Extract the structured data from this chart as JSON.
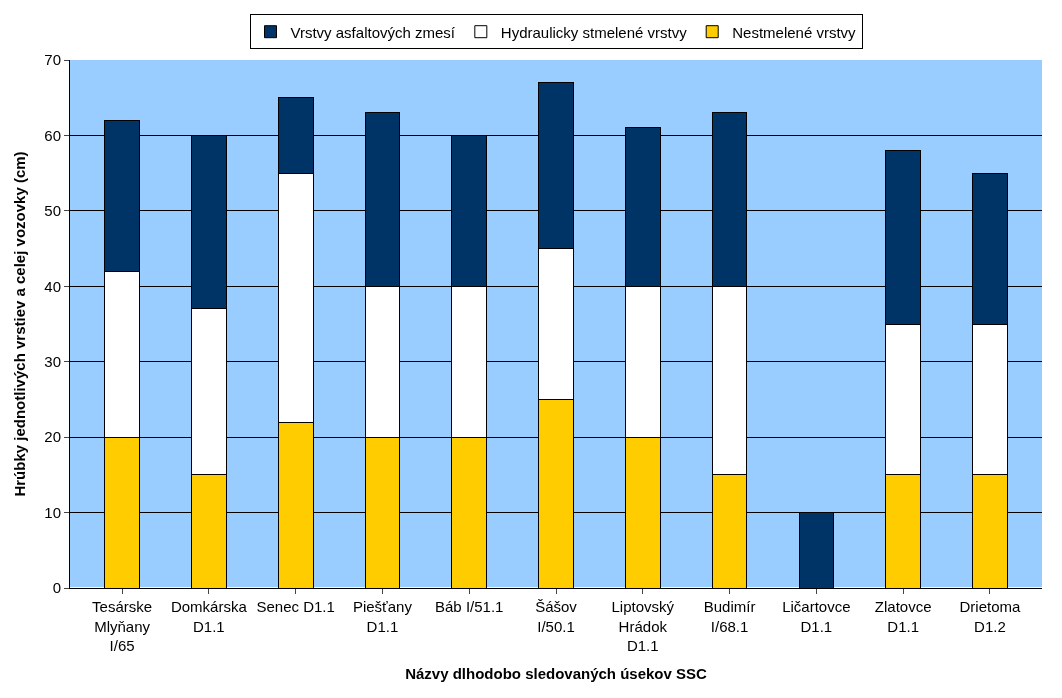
{
  "chart_data": {
    "type": "bar",
    "stacked": true,
    "xlabel": "Názvy dlhodobo sledovaných úsekov SSC",
    "ylabel": "Hrúbky jednotlivých vrstiev a celej vozovky (cm)",
    "categories": [
      "Tesárske Mlyňany I/65",
      "Domkárska D1.1",
      "Senec D1.1",
      "Piešťany D1.1",
      "Báb I/51.1",
      "Šášov I/50.1",
      "Liptovský Hrádok D1.1",
      "Budimír I/68.1",
      "Ličartovce D1.1",
      "Zlatovce D1.1",
      "Drietoma D1.2"
    ],
    "series": [
      {
        "name": "Nestmelené vrstvy",
        "color": "#ffcc00",
        "values": [
          20,
          15,
          22,
          20,
          20,
          25,
          20,
          15,
          0,
          15,
          15
        ]
      },
      {
        "name": "Hydraulicky stmelené vrstvy",
        "color": "#ffffff",
        "values": [
          22,
          22,
          33,
          20,
          20,
          20,
          20,
          25,
          0,
          20,
          20
        ]
      },
      {
        "name": "Vrstvy asfaltových zmesí",
        "color": "#003366",
        "values": [
          20,
          23,
          10,
          23,
          20,
          22,
          21,
          23,
          10,
          23,
          20
        ]
      }
    ],
    "ylim": [
      0,
      70
    ],
    "yticks": [
      0,
      10,
      20,
      30,
      40,
      50,
      60,
      70
    ],
    "grid": "y",
    "legend": "top"
  }
}
